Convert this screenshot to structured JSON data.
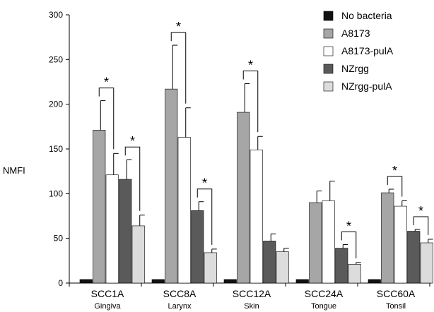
{
  "chart_data": {
    "type": "bar",
    "ylabel": "NMFI",
    "ylim": [
      0,
      300
    ],
    "yticks": [
      0,
      50,
      100,
      150,
      200,
      250,
      300
    ],
    "categories": [
      "SCC1A",
      "SCC8A",
      "SCC12A",
      "SCC24A",
      "SCC60A"
    ],
    "subcategories": [
      "Gingiva",
      "Larynx",
      "Skin",
      "Tongue",
      "Tonsil"
    ],
    "series": [
      {
        "name": "No bacteria",
        "color": "#111111",
        "values": [
          4,
          4,
          4,
          4,
          4
        ],
        "errors": [
          0,
          0,
          0,
          0,
          0
        ]
      },
      {
        "name": "A8173",
        "color": "#a6a6a6",
        "values": [
          171,
          217,
          191,
          90,
          101
        ],
        "errors": [
          33,
          49,
          32,
          13,
          4
        ]
      },
      {
        "name": "A8173-pulA",
        "color": "#ffffff",
        "values": [
          121,
          163,
          149,
          92,
          86
        ],
        "errors": [
          24,
          33,
          15,
          22,
          6
        ]
      },
      {
        "name": "NZrgg",
        "color": "#5a5a5a",
        "values": [
          116,
          81,
          47,
          39,
          58
        ],
        "errors": [
          22,
          10,
          8,
          4,
          2
        ]
      },
      {
        "name": "NZrgg-pulA",
        "color": "#dcdcdc",
        "values": [
          64,
          34,
          35,
          21,
          45
        ],
        "errors": [
          12,
          4,
          4,
          2,
          4
        ]
      }
    ],
    "significance": [
      {
        "category": 0,
        "from": 1,
        "to": 2,
        "label": "*"
      },
      {
        "category": 0,
        "from": 3,
        "to": 4,
        "label": "*"
      },
      {
        "category": 1,
        "from": 1,
        "to": 2,
        "label": "*"
      },
      {
        "category": 1,
        "from": 3,
        "to": 4,
        "label": "*"
      },
      {
        "category": 2,
        "from": 1,
        "to": 2,
        "label": "*"
      },
      {
        "category": 3,
        "from": 3,
        "to": 4,
        "label": "*"
      },
      {
        "category": 4,
        "from": 1,
        "to": 2,
        "label": "*"
      },
      {
        "category": 4,
        "from": 3,
        "to": 4,
        "label": "*"
      }
    ],
    "legend_position": "top-right"
  }
}
